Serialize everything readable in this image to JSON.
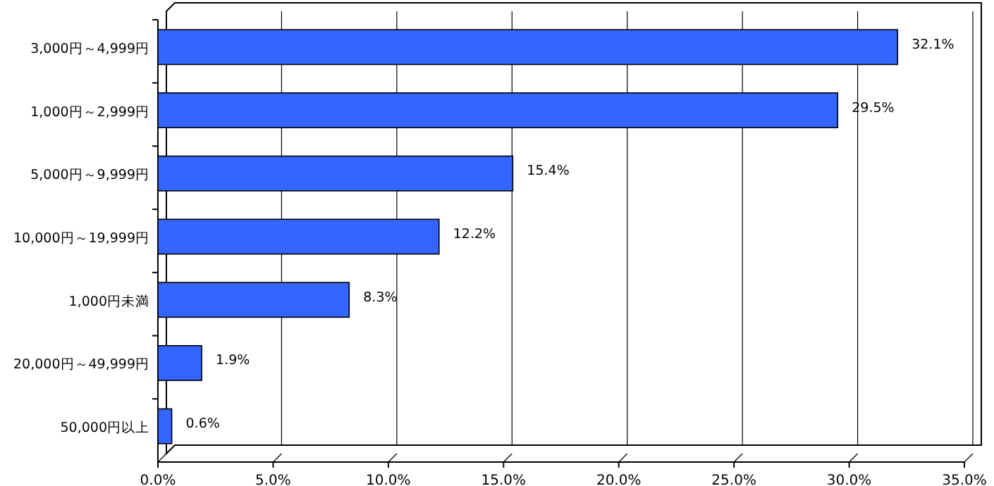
{
  "chart_data": {
    "type": "bar",
    "orientation": "horizontal",
    "categories": [
      "3,000円～4,999円",
      "1,000円～2,999円",
      "5,000円～9,999円",
      "10,000円～19,999円",
      "1,000円未満",
      "20,000円～49,999円",
      "50,000円以上"
    ],
    "values": [
      32.1,
      29.5,
      15.4,
      12.2,
      8.3,
      1.9,
      0.6
    ],
    "value_labels": [
      "32.1%",
      "29.5%",
      "15.4%",
      "12.2%",
      "8.3%",
      "1.9%",
      "0.6%"
    ],
    "color": "#3366ff",
    "xlim": [
      0,
      35
    ],
    "xticks": [
      {
        "value": 0,
        "label": "0.0%"
      },
      {
        "value": 5,
        "label": "5.0%"
      },
      {
        "value": 10,
        "label": "10.0%"
      },
      {
        "value": 15,
        "label": "15.0%"
      },
      {
        "value": 20,
        "label": "20.0%"
      },
      {
        "value": 25,
        "label": "25.0%"
      },
      {
        "value": 30,
        "label": "30.0%"
      },
      {
        "value": 35,
        "label": "35.0%"
      }
    ],
    "grid": "x"
  }
}
